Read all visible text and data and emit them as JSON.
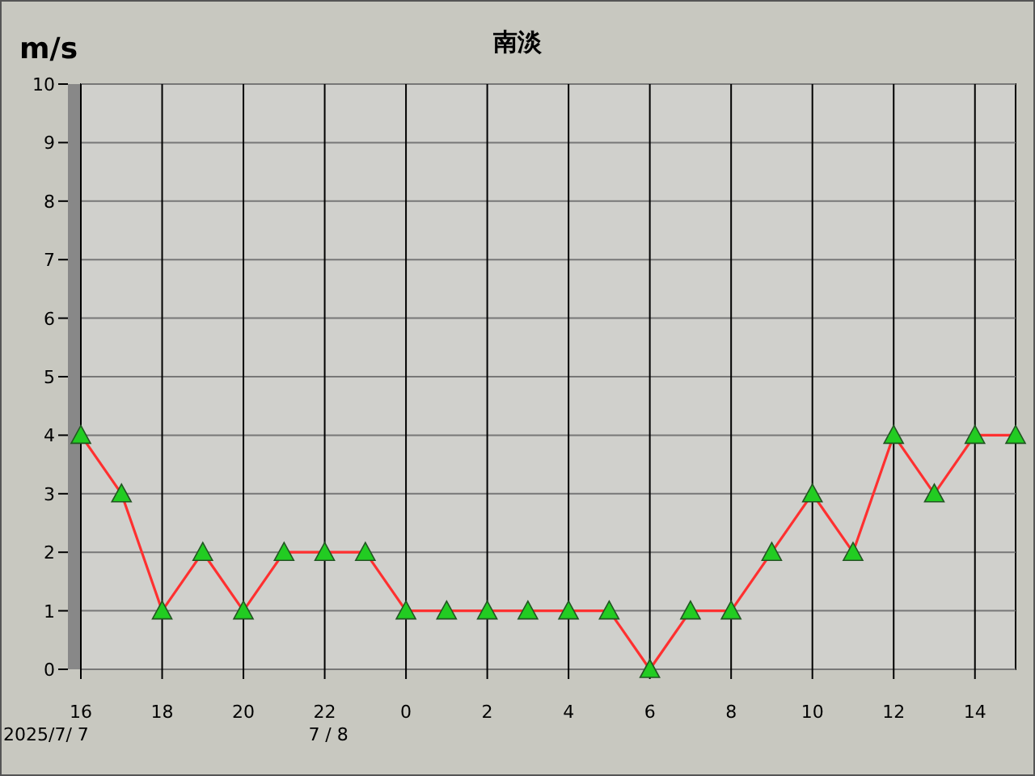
{
  "chart_data": {
    "type": "line",
    "title": "南淡",
    "ylabel": "m/s",
    "x": [
      "2025-07-07T16:00",
      "2025-07-07T17:00",
      "2025-07-07T18:00",
      "2025-07-07T19:00",
      "2025-07-07T20:00",
      "2025-07-07T21:00",
      "2025-07-07T22:00",
      "2025-07-07T23:00",
      "2025-07-08T00:00",
      "2025-07-08T01:00",
      "2025-07-08T02:00",
      "2025-07-08T03:00",
      "2025-07-08T04:00",
      "2025-07-08T05:00",
      "2025-07-08T06:00",
      "2025-07-08T07:00",
      "2025-07-08T08:00",
      "2025-07-08T09:00",
      "2025-07-08T10:00",
      "2025-07-08T11:00",
      "2025-07-08T12:00",
      "2025-07-08T13:00",
      "2025-07-08T14:00",
      "2025-07-08T15:00"
    ],
    "series": [
      {
        "color": "#ff3030",
        "colors": [
          "#22cc22",
          "#22cc22",
          "#22cc22",
          "#22cc22",
          "#22cc22",
          "#22cc22",
          "#22cc22",
          "#22cc22",
          "#22cc22",
          "#22cc22",
          "#22cc22",
          "#22cc22",
          "#22cc22",
          "#22cc22",
          "#22cc22",
          "#22cc22",
          "#22cc22",
          "#22cc22",
          "#22cc22",
          "#22cc22",
          "#22cc22",
          "#22cc22",
          "#22cc22",
          "#22cc22"
        ],
        "values": [
          4,
          3,
          1,
          2,
          1,
          2,
          2,
          2,
          1,
          1,
          1,
          1,
          1,
          1,
          0,
          1,
          1,
          2,
          3,
          2,
          4,
          3,
          4,
          4
        ]
      }
    ],
    "xlim": [
      "2025-07-07T16:00",
      "2025-07-08T15:00"
    ],
    "xticks": [
      {
        "value": "2025-07-07T16:00",
        "label": "16"
      },
      {
        "value": "2025-07-07T18:00",
        "label": "18"
      },
      {
        "value": "2025-07-07T20:00",
        "label": "20"
      },
      {
        "value": "2025-07-07T22:00",
        "label": "22"
      },
      {
        "value": "2025-07-08T00:00",
        "label": "0"
      },
      {
        "value": "2025-07-08T02:00",
        "label": "2"
      },
      {
        "value": "2025-07-08T04:00",
        "label": "4"
      },
      {
        "value": "2025-07-08T06:00",
        "label": "6"
      },
      {
        "value": "2025-07-08T08:00",
        "label": "8"
      },
      {
        "value": "2025-07-08T10:00",
        "label": "10"
      },
      {
        "value": "2025-07-08T12:00",
        "label": "12"
      },
      {
        "value": "2025-07-08T14:00",
        "label": "14"
      }
    ],
    "ylim": [
      0,
      10
    ],
    "yticks": [
      0,
      1,
      2,
      3,
      4,
      5,
      6,
      7,
      8,
      9,
      10
    ],
    "grid": true,
    "marker": "triangle",
    "line_style": "solid",
    "annotations": [
      "2025/7/ 7",
      "7 / 8"
    ]
  }
}
